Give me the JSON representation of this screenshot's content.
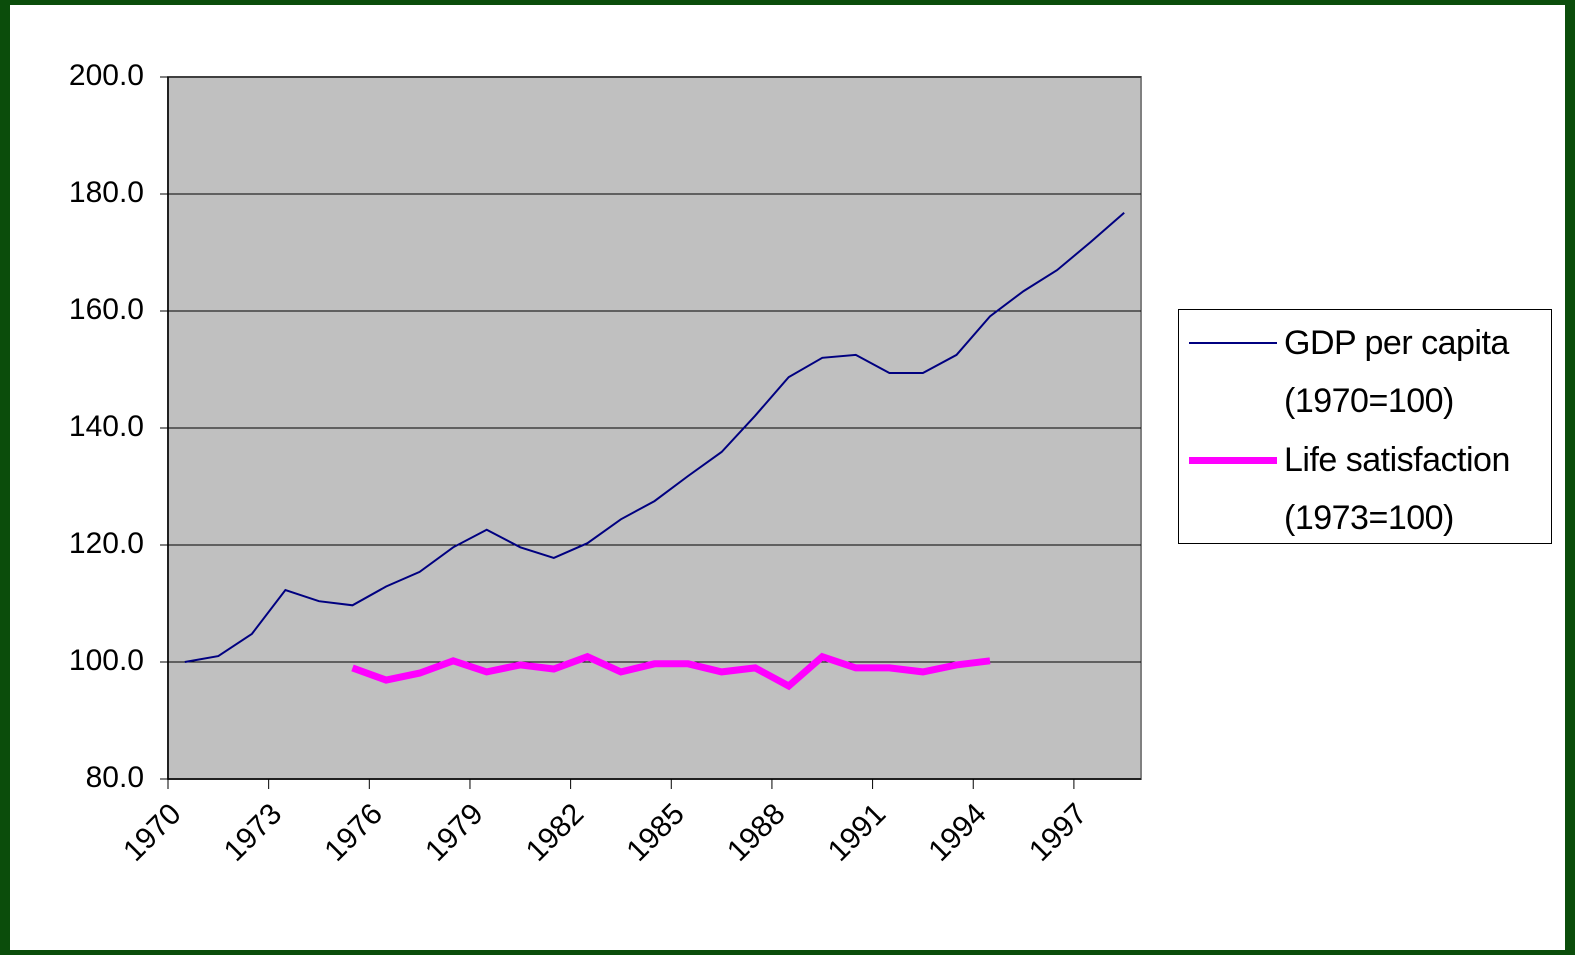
{
  "chart_data": {
    "type": "line",
    "categories": [
      "1970",
      null,
      null,
      "1973",
      null,
      null,
      "1976",
      null,
      null,
      "1979",
      null,
      null,
      "1982",
      null,
      null,
      "1985",
      null,
      null,
      "1988",
      null,
      null,
      "1991",
      null,
      null,
      "1994",
      null,
      null,
      "1997",
      null
    ],
    "series": [
      {
        "name": "GDP per capita (1970=100)",
        "color": "#000080",
        "width": 2,
        "values": [
          100,
          101,
          104.8,
          112.3,
          110.4,
          109.7,
          112.9,
          115.4,
          119.6,
          122.6,
          119.6,
          117.8,
          120.3,
          124.4,
          127.5,
          131.8,
          135.9,
          142.1,
          148.7,
          152.0,
          152.5,
          149.4,
          149.4,
          152.5,
          159.1,
          163.4,
          167.0,
          171.8,
          176.8
        ]
      },
      {
        "name": "Life satisfaction (1973=100)",
        "color": "#ff00ff",
        "width": 7,
        "values": [
          null,
          null,
          null,
          null,
          null,
          99.0,
          96.9,
          98.1,
          100.2,
          98.3,
          99.5,
          98.8,
          100.9,
          98.3,
          99.7,
          99.7,
          98.3,
          99.0,
          95.9,
          100.9,
          99.0,
          99.0,
          98.3,
          99.5,
          100.2,
          null,
          null,
          null,
          null
        ]
      }
    ],
    "ylim": [
      80,
      200
    ],
    "yticks": [
      {
        "value": 80,
        "label": "80.0"
      },
      {
        "value": 100,
        "label": "100.0"
      },
      {
        "value": 120,
        "label": "120.0"
      },
      {
        "value": 140,
        "label": "140.0"
      },
      {
        "value": 160,
        "label": "160.0"
      },
      {
        "value": 180,
        "label": "180.0"
      },
      {
        "value": 200,
        "label": "200.0"
      }
    ],
    "grid": true
  }
}
